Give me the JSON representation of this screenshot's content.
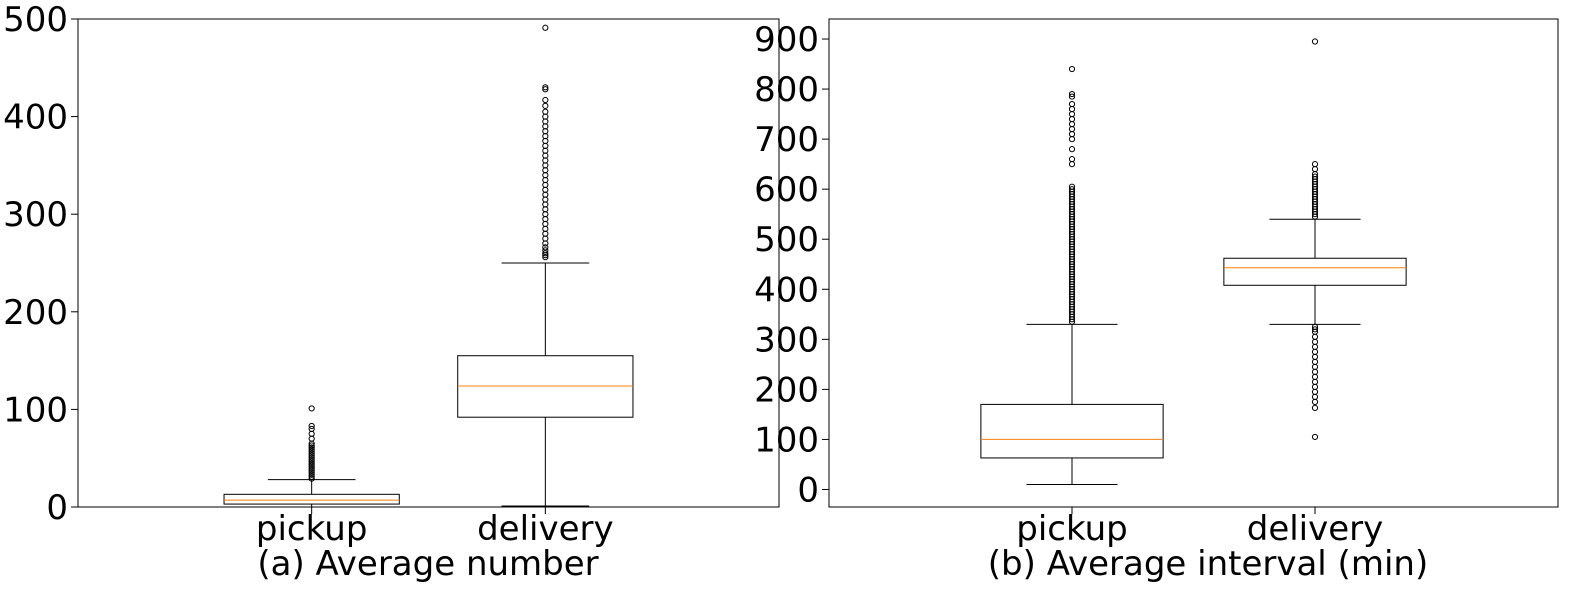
{
  "chart_data": [
    {
      "type": "box",
      "caption": "(a) Average number",
      "ylim": [
        0,
        500
      ],
      "yticks": [
        0,
        100,
        200,
        300,
        400,
        500
      ],
      "categories": [
        "pickup",
        "delivery"
      ],
      "boxes": [
        {
          "category": "pickup",
          "whisker_low": 0,
          "q1": 3,
          "median": 7,
          "q3": 13,
          "whisker_high": 28,
          "outliers": [
            29,
            31,
            33,
            35,
            37,
            39,
            41,
            43,
            45,
            47,
            49,
            51,
            53,
            55,
            57,
            59,
            61,
            63,
            65,
            70,
            75,
            80,
            83,
            101
          ]
        },
        {
          "category": "delivery",
          "whisker_low": 1,
          "q1": 92,
          "median": 124,
          "q3": 155,
          "whisker_high": 250,
          "outliers": [
            256,
            258,
            260,
            263,
            266,
            270,
            275,
            280,
            285,
            290,
            295,
            300,
            305,
            310,
            315,
            320,
            325,
            330,
            335,
            340,
            345,
            350,
            355,
            360,
            365,
            370,
            375,
            380,
            385,
            390,
            395,
            400,
            405,
            411,
            417,
            428,
            430,
            491
          ]
        }
      ]
    },
    {
      "type": "box",
      "caption": "(b) Average interval (min)",
      "ylim": [
        -35,
        940
      ],
      "yticks": [
        0,
        100,
        200,
        300,
        400,
        500,
        600,
        700,
        800,
        900
      ],
      "categories": [
        "pickup",
        "delivery"
      ],
      "boxes": [
        {
          "category": "pickup",
          "whisker_low": 10,
          "q1": 63,
          "median": 100,
          "q3": 170,
          "whisker_high": 330,
          "outliers": [
            335,
            340,
            345,
            350,
            355,
            360,
            365,
            370,
            375,
            380,
            385,
            390,
            395,
            400,
            405,
            410,
            415,
            420,
            425,
            430,
            435,
            440,
            445,
            450,
            455,
            460,
            465,
            470,
            475,
            480,
            485,
            490,
            495,
            500,
            505,
            510,
            515,
            520,
            525,
            530,
            535,
            540,
            545,
            550,
            555,
            560,
            565,
            570,
            575,
            580,
            585,
            590,
            595,
            600,
            605,
            650,
            660,
            680,
            700,
            710,
            720,
            730,
            740,
            750,
            760,
            770,
            785,
            790,
            840
          ]
        },
        {
          "category": "delivery",
          "whisker_low": 330,
          "q1": 408,
          "median": 443,
          "q3": 462,
          "whisker_high": 540,
          "outliers": [
            105,
            163,
            175,
            185,
            195,
            205,
            215,
            225,
            235,
            245,
            255,
            265,
            275,
            285,
            295,
            305,
            315,
            320,
            325,
            545,
            550,
            555,
            560,
            565,
            570,
            575,
            580,
            585,
            590,
            595,
            600,
            605,
            610,
            615,
            620,
            625,
            630,
            640,
            650,
            895
          ]
        }
      ]
    }
  ],
  "colors": {
    "median": "#ff7f0e",
    "box": "#000000",
    "outlier": "#000000"
  }
}
